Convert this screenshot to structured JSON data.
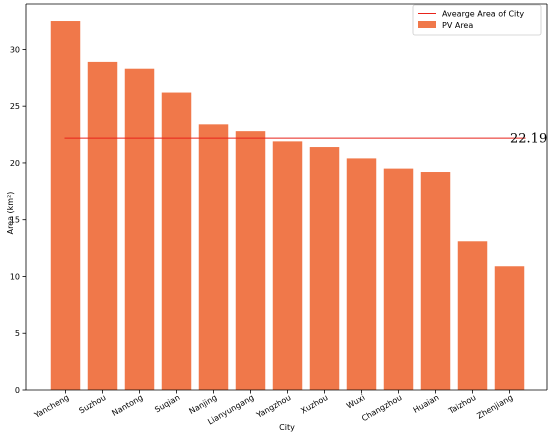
{
  "chart_data": {
    "type": "bar",
    "categories": [
      "Yancheng",
      "Suzhou",
      "Nantong",
      "Suqian",
      "Nanjing",
      "Lianyungang",
      "Yangzhou",
      "Xuzhou",
      "Wuxi",
      "Changzhou",
      "Huaian",
      "Taizhou",
      "Zhenjiang"
    ],
    "series": [
      {
        "name": "PV Area",
        "values": [
          32.5,
          28.9,
          28.3,
          26.2,
          23.4,
          22.8,
          21.9,
          21.4,
          20.4,
          19.5,
          19.2,
          13.1,
          10.9
        ]
      }
    ],
    "average": {
      "name": "Avearge Area of City",
      "value": 22.19,
      "label": "22.19"
    },
    "xlabel": "City",
    "ylabel": "Area (km²)",
    "ylim": [
      0,
      34
    ],
    "yticks": [
      0,
      5,
      10,
      15,
      20,
      25,
      30
    ],
    "grid": false,
    "legend_position": "top-right",
    "colors": {
      "bar": "#f0784a",
      "average_line": "#e8231a",
      "axis": "#000000"
    }
  }
}
